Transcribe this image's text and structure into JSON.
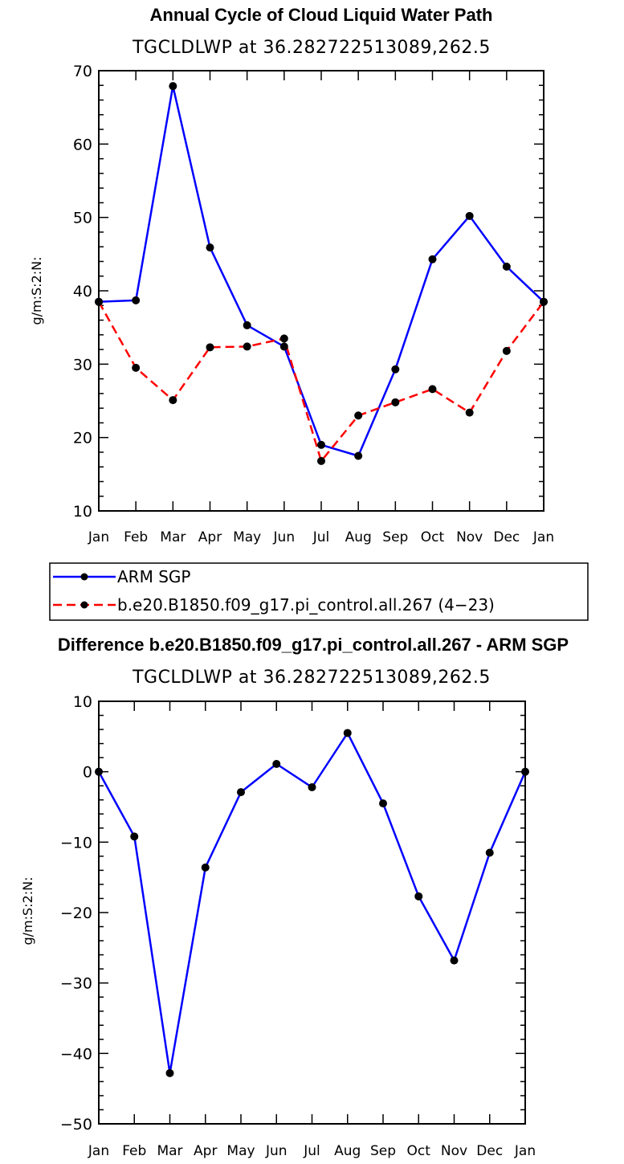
{
  "chart_data": [
    {
      "type": "line",
      "title": "Annual Cycle of Cloud Liquid Water Path",
      "subtitle": "TGCLDLWP  at  36.282722513089,262.5",
      "ylabel": "g/m:S:2:N:",
      "xlabel": "",
      "ylim": [
        10,
        70
      ],
      "yticks": [
        10,
        20,
        30,
        40,
        50,
        60,
        70
      ],
      "yticks_text": [
        "10",
        "20",
        "30",
        "40",
        "50",
        "60",
        "70"
      ],
      "y_minor_step": 2,
      "categories": [
        "Jan",
        "Feb",
        "Mar",
        "Apr",
        "May",
        "Jun",
        "Jul",
        "Aug",
        "Sep",
        "Oct",
        "Nov",
        "Dec",
        "Jan"
      ],
      "series": [
        {
          "name": "ARM SGP",
          "color": "#0000ff",
          "dash": "solid",
          "values": [
            38.5,
            38.7,
            67.9,
            45.9,
            35.3,
            32.4,
            19.0,
            17.5,
            29.3,
            44.3,
            50.2,
            43.3,
            38.5
          ]
        },
        {
          "name": "b.e20.B1850.f09_g17.pi_control.all.267 (4-23)",
          "color": "#ff0000",
          "dash": "dashed",
          "values": [
            38.5,
            29.5,
            25.1,
            32.3,
            32.4,
            33.5,
            16.8,
            23.0,
            24.8,
            26.6,
            23.4,
            31.8,
            38.5
          ]
        }
      ],
      "legend": {
        "entries": [
          "ARM SGP",
          "b.e20.B1850.f09_g17.pi_control.all.267 (4−23)"
        ]
      }
    },
    {
      "type": "line",
      "title": "Difference b.e20.B1850.f09_g17.pi_control.all.267 - ARM SGP",
      "subtitle": "TGCLDLWP  at  36.282722513089,262.5",
      "ylabel": "g/m:S:2:N:",
      "xlabel": "",
      "ylim": [
        -50,
        10
      ],
      "yticks": [
        -50,
        -40,
        -30,
        -20,
        -10,
        0,
        10
      ],
      "yticks_text": [
        "−50",
        "−40",
        "−30",
        "−20",
        "−10",
        "0",
        "10"
      ],
      "y_minor_step": 2,
      "categories": [
        "Jan",
        "Feb",
        "Mar",
        "Apr",
        "May",
        "Jun",
        "Jul",
        "Aug",
        "Sep",
        "Oct",
        "Nov",
        "Dec",
        "Jan"
      ],
      "series": [
        {
          "name": "Difference",
          "color": "#0000ff",
          "dash": "solid",
          "values": [
            0.0,
            -9.2,
            -42.8,
            -13.6,
            -2.9,
            1.1,
            -2.2,
            5.5,
            -4.5,
            -17.7,
            -26.8,
            -11.5,
            0.0
          ]
        }
      ]
    }
  ]
}
